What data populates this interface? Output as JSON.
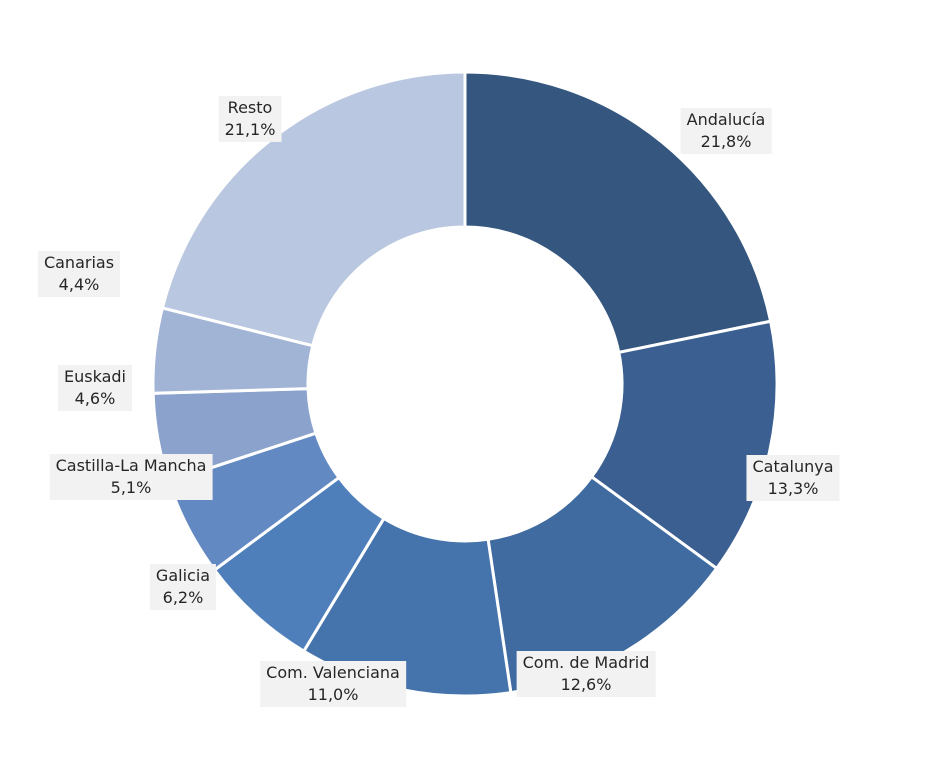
{
  "chart_data": {
    "type": "pie",
    "donut": true,
    "title": "",
    "series": [
      {
        "values": [
          21.8,
          13.3,
          12.6,
          11.0,
          6.2,
          5.1,
          4.6,
          4.4,
          21.1
        ]
      }
    ],
    "categories": [
      "Andalucía",
      "Catalunya",
      "Com. de Madrid",
      "Com. Valenciana",
      "Galicia",
      "Castilla-La Mancha",
      "Euskadi",
      "Canarias",
      "Resto"
    ],
    "labels": [
      {
        "name": "Andalucía",
        "value": "21,8%"
      },
      {
        "name": "Catalunya",
        "value": "13,3%"
      },
      {
        "name": "Com. de Madrid",
        "value": "12,6%"
      },
      {
        "name": "Com. Valenciana",
        "value": "11,0%"
      },
      {
        "name": "Galicia",
        "value": "6,2%"
      },
      {
        "name": "Castilla-La Mancha",
        "value": "5,1%"
      },
      {
        "name": "Euskadi",
        "value": "4,6%"
      },
      {
        "name": "Canarias",
        "value": "4,4%"
      },
      {
        "name": "Resto",
        "value": "21,1%"
      }
    ],
    "colors": [
      "#34567f",
      "#3a5f90",
      "#3f6ba0",
      "#4573ab",
      "#4e7fbb",
      "#6389c2",
      "#8ba3cc",
      "#a2b4d6",
      "#b9c7e0"
    ],
    "legend": "none"
  }
}
